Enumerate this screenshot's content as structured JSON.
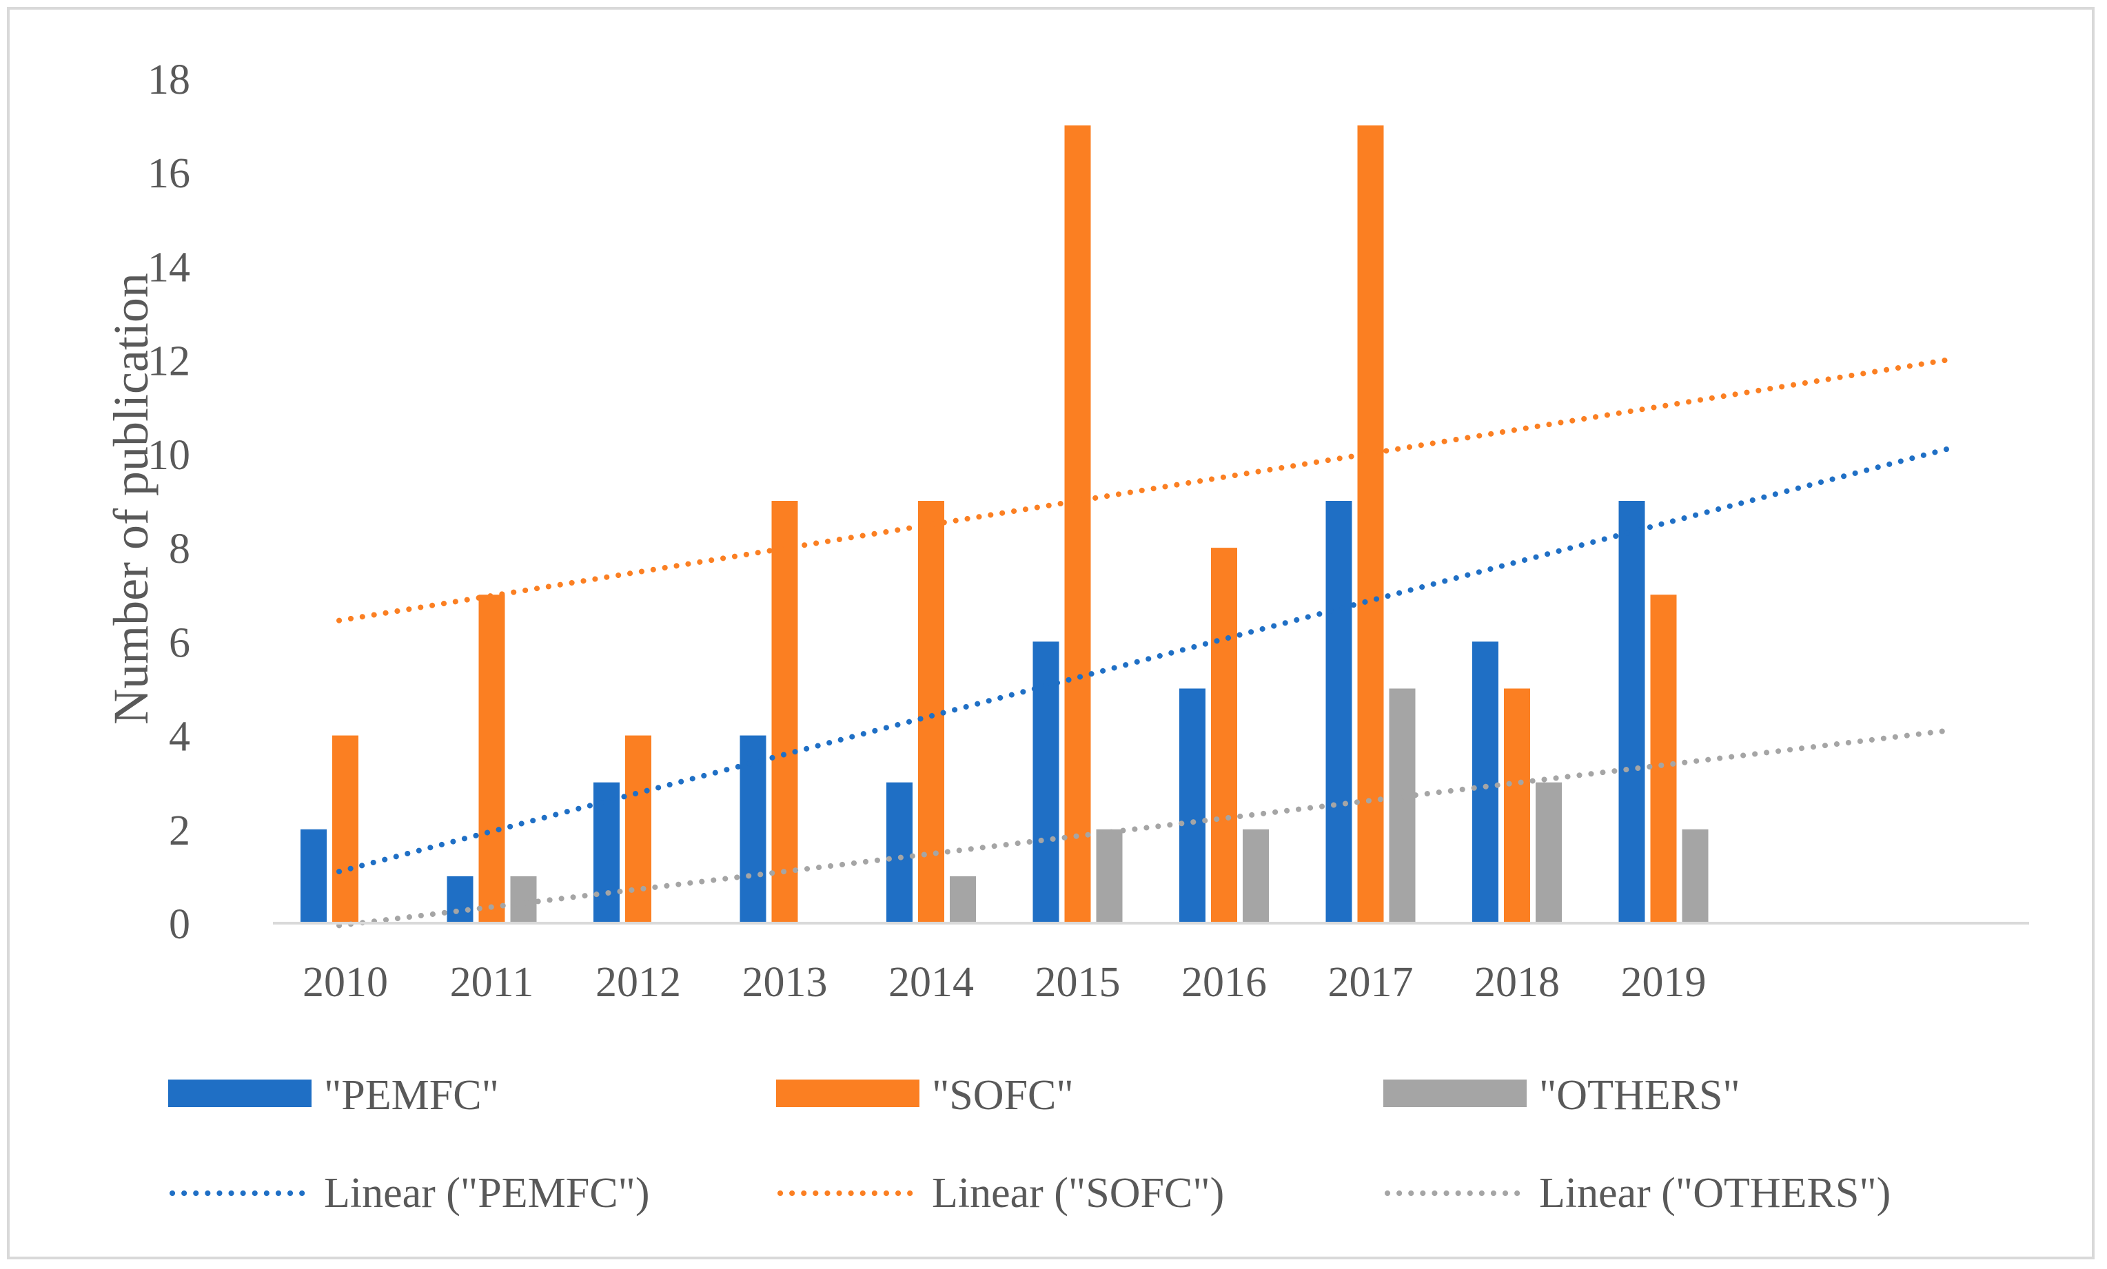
{
  "chart_data": {
    "type": "bar",
    "title": "",
    "xlabel": "",
    "ylabel": "Number of publication",
    "ylim": [
      0,
      18
    ],
    "yticks": [
      0,
      2,
      4,
      6,
      8,
      10,
      12,
      14,
      16,
      18
    ],
    "categories": [
      "2010",
      "2011",
      "2012",
      "2013",
      "2014",
      "2015",
      "2016",
      "2017",
      "2018",
      "2019"
    ],
    "series": [
      {
        "name": "\"PEMFC\"",
        "color": "#1f6fc5",
        "values": [
          2,
          1,
          3,
          4,
          3,
          6,
          5,
          9,
          6,
          9
        ]
      },
      {
        "name": "\"SOFC\"",
        "color": "#fb7f22",
        "values": [
          4,
          7,
          4,
          9,
          9,
          17,
          8,
          17,
          5,
          7
        ]
      },
      {
        "name": "\"OTHERS\"",
        "color": "#a5a5a5",
        "values": [
          0,
          1,
          0,
          0,
          1,
          2,
          2,
          5,
          3,
          2
        ]
      }
    ],
    "trendlines": [
      {
        "name": "Linear (\"PEMFC\")",
        "color": "#1f6fc5",
        "start_value": 1.1,
        "end_value": 10.1
      },
      {
        "name": "Linear (\"SOFC\")",
        "color": "#fb7f22",
        "start_value": 6.45,
        "end_value": 12.0
      },
      {
        "name": "Linear (\"OTHERS\")",
        "color": "#a5a5a5",
        "start_value": -0.05,
        "end_value": 4.1
      }
    ],
    "grid": false,
    "legend_position": "bottom"
  }
}
